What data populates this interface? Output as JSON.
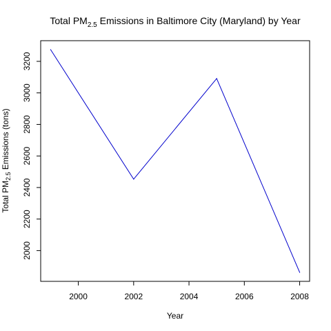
{
  "chart_data": {
    "type": "line",
    "title_main": "Total PM",
    "title_sub": "2.5",
    "title_rest": " Emissions in Baltimore City (Maryland) by Year",
    "xlabel": "Year",
    "ylabel_main": "Total PM",
    "ylabel_sub": "2.5",
    "ylabel_rest": " Emissions (tons)",
    "x": [
      1999,
      2002,
      2005,
      2008
    ],
    "series": [
      {
        "values": [
          3274,
          2453,
          3091,
          1862
        ],
        "color": "#0000cc"
      }
    ],
    "xlim": [
      1998.64,
      2008.36
    ],
    "ylim": [
      1805,
      3331
    ],
    "xticks": [
      2000,
      2002,
      2004,
      2006,
      2008
    ],
    "yticks": [
      2000,
      2200,
      2400,
      2600,
      2800,
      3000,
      3200
    ],
    "xtick_labels": [
      "2000",
      "2002",
      "2004",
      "2006",
      "2008"
    ],
    "ytick_labels": [
      "2000",
      "2200",
      "2400",
      "2600",
      "2800",
      "3000",
      "3200"
    ],
    "grid": false,
    "legend": "none"
  }
}
